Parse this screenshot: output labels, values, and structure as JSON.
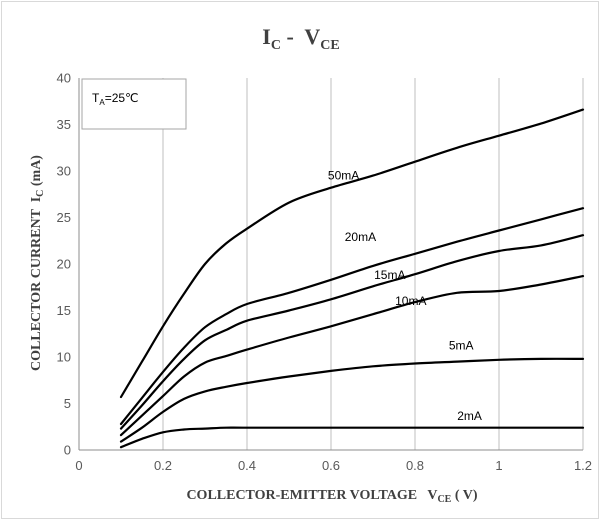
{
  "chart_data": {
    "type": "line",
    "title": {
      "main": "I",
      "sub1": "C",
      "sep": " -  V",
      "sub2": "CE"
    },
    "xlabel": {
      "main": "COLLECTOR-EMITTER VOLTAGE   V",
      "sub": "CE",
      "unit": " ( V)"
    },
    "ylabel": {
      "main": "COLLECTOR CURRENT  I",
      "sub": "C",
      "unit": " (mA)"
    },
    "xlim": [
      0,
      1.2
    ],
    "ylim": [
      0,
      40
    ],
    "xticks": [
      0,
      0.2,
      0.4,
      0.6,
      0.8,
      1,
      1.2
    ],
    "xtick_labels": [
      "0",
      "0.2",
      "0.4",
      "0.6",
      "0.8",
      "1",
      "1.2"
    ],
    "yticks": [
      0,
      5,
      10,
      15,
      20,
      25,
      30,
      35,
      40
    ],
    "ytick_labels": [
      "0",
      "5",
      "10",
      "15",
      "20",
      "25",
      "30",
      "35",
      "40"
    ],
    "grid": "vertical",
    "annotation": {
      "main": "T",
      "sub": "A",
      "rest": "=25℃"
    },
    "series": [
      {
        "name": "50mA",
        "points": [
          [
            0.1,
            5.7
          ],
          [
            0.15,
            9.5
          ],
          [
            0.2,
            13.3
          ],
          [
            0.25,
            16.8
          ],
          [
            0.3,
            20.0
          ],
          [
            0.35,
            22.2
          ],
          [
            0.4,
            23.8
          ],
          [
            0.5,
            26.6
          ],
          [
            0.6,
            28.2
          ],
          [
            0.7,
            29.5
          ],
          [
            0.8,
            31.0
          ],
          [
            0.9,
            32.5
          ],
          [
            1.0,
            33.8
          ],
          [
            1.1,
            35.1
          ],
          [
            1.2,
            36.6
          ]
        ]
      },
      {
        "name": "20mA",
        "points": [
          [
            0.1,
            2.8
          ],
          [
            0.15,
            5.6
          ],
          [
            0.2,
            8.4
          ],
          [
            0.25,
            11.0
          ],
          [
            0.3,
            13.2
          ],
          [
            0.35,
            14.6
          ],
          [
            0.4,
            15.7
          ],
          [
            0.5,
            16.9
          ],
          [
            0.6,
            18.3
          ],
          [
            0.7,
            19.8
          ],
          [
            0.8,
            21.1
          ],
          [
            0.9,
            22.4
          ],
          [
            1.0,
            23.6
          ],
          [
            1.1,
            24.8
          ],
          [
            1.2,
            26.0
          ]
        ]
      },
      {
        "name": "15mA",
        "points": [
          [
            0.1,
            2.3
          ],
          [
            0.15,
            4.8
          ],
          [
            0.2,
            7.4
          ],
          [
            0.25,
            9.8
          ],
          [
            0.3,
            11.8
          ],
          [
            0.35,
            12.9
          ],
          [
            0.4,
            13.9
          ],
          [
            0.5,
            15.0
          ],
          [
            0.6,
            16.2
          ],
          [
            0.7,
            17.6
          ],
          [
            0.8,
            18.9
          ],
          [
            0.9,
            20.3
          ],
          [
            1.0,
            21.4
          ],
          [
            1.1,
            22.0
          ],
          [
            1.2,
            23.1
          ]
        ]
      },
      {
        "name": "10mA",
        "points": [
          [
            0.1,
            1.6
          ],
          [
            0.15,
            3.7
          ],
          [
            0.2,
            5.8
          ],
          [
            0.25,
            7.9
          ],
          [
            0.3,
            9.4
          ],
          [
            0.35,
            10.1
          ],
          [
            0.4,
            10.8
          ],
          [
            0.5,
            12.1
          ],
          [
            0.6,
            13.3
          ],
          [
            0.7,
            14.6
          ],
          [
            0.8,
            15.9
          ],
          [
            0.9,
            16.9
          ],
          [
            1.0,
            17.1
          ],
          [
            1.1,
            17.8
          ],
          [
            1.2,
            18.7
          ]
        ]
      },
      {
        "name": "5mA",
        "points": [
          [
            0.1,
            0.9
          ],
          [
            0.15,
            2.4
          ],
          [
            0.2,
            4.1
          ],
          [
            0.25,
            5.5
          ],
          [
            0.3,
            6.3
          ],
          [
            0.35,
            6.8
          ],
          [
            0.4,
            7.2
          ],
          [
            0.5,
            7.9
          ],
          [
            0.6,
            8.5
          ],
          [
            0.7,
            9.0
          ],
          [
            0.8,
            9.3
          ],
          [
            0.9,
            9.5
          ],
          [
            1.0,
            9.7
          ],
          [
            1.1,
            9.8
          ],
          [
            1.2,
            9.8
          ]
        ]
      },
      {
        "name": "2mA",
        "points": [
          [
            0.1,
            0.3
          ],
          [
            0.15,
            1.2
          ],
          [
            0.2,
            1.9
          ],
          [
            0.25,
            2.2
          ],
          [
            0.3,
            2.3
          ],
          [
            0.35,
            2.4
          ],
          [
            0.4,
            2.4
          ],
          [
            0.6,
            2.4
          ],
          [
            0.8,
            2.4
          ],
          [
            1.0,
            2.4
          ],
          [
            1.2,
            2.4
          ]
        ]
      }
    ],
    "series_labels": [
      {
        "text": "50mA",
        "x": 0.63,
        "y": 29.1
      },
      {
        "text": "20mA",
        "x": 0.67,
        "y": 22.5
      },
      {
        "text": "15mA",
        "x": 0.74,
        "y": 18.4
      },
      {
        "text": "10mA",
        "x": 0.79,
        "y": 15.6
      },
      {
        "text": "5mA",
        "x": 0.91,
        "y": 10.8
      },
      {
        "text": "2mA",
        "x": 0.93,
        "y": 3.2
      }
    ],
    "colors": {
      "line": "#000000",
      "grid": "#bfbfbf",
      "axis": "#8c8c8c",
      "text": "#595959"
    }
  }
}
